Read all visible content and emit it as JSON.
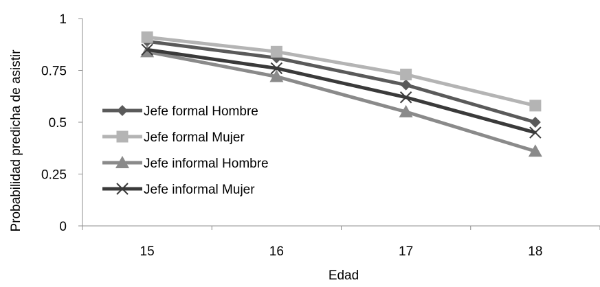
{
  "chart_data": {
    "type": "line",
    "title": "",
    "xlabel": "Edad",
    "ylabel": "Probabilidad predicha de asistir",
    "categories": [
      "15",
      "16",
      "17",
      "18"
    ],
    "ylim": [
      0,
      1
    ],
    "yticks": [
      "0",
      "0.25",
      "0.5",
      "0.75",
      "1"
    ],
    "grid": false,
    "legend_position": "left",
    "series": [
      {
        "name": "Jefe formal Hombre",
        "values": [
          0.89,
          0.81,
          0.68,
          0.5
        ],
        "color": "#5a5a5a",
        "marker": "diamond-icon"
      },
      {
        "name": "Jefe formal Mujer",
        "values": [
          0.91,
          0.84,
          0.73,
          0.58
        ],
        "color": "#b4b4b4",
        "marker": "square-icon"
      },
      {
        "name": "Jefe informal Hombre",
        "values": [
          0.84,
          0.72,
          0.55,
          0.36
        ],
        "color": "#8a8a8a",
        "marker": "triangle-icon"
      },
      {
        "name": "Jefe informal Mujer",
        "values": [
          0.85,
          0.76,
          0.62,
          0.45
        ],
        "color": "#3a3a3a",
        "marker": "x-icon"
      }
    ]
  }
}
